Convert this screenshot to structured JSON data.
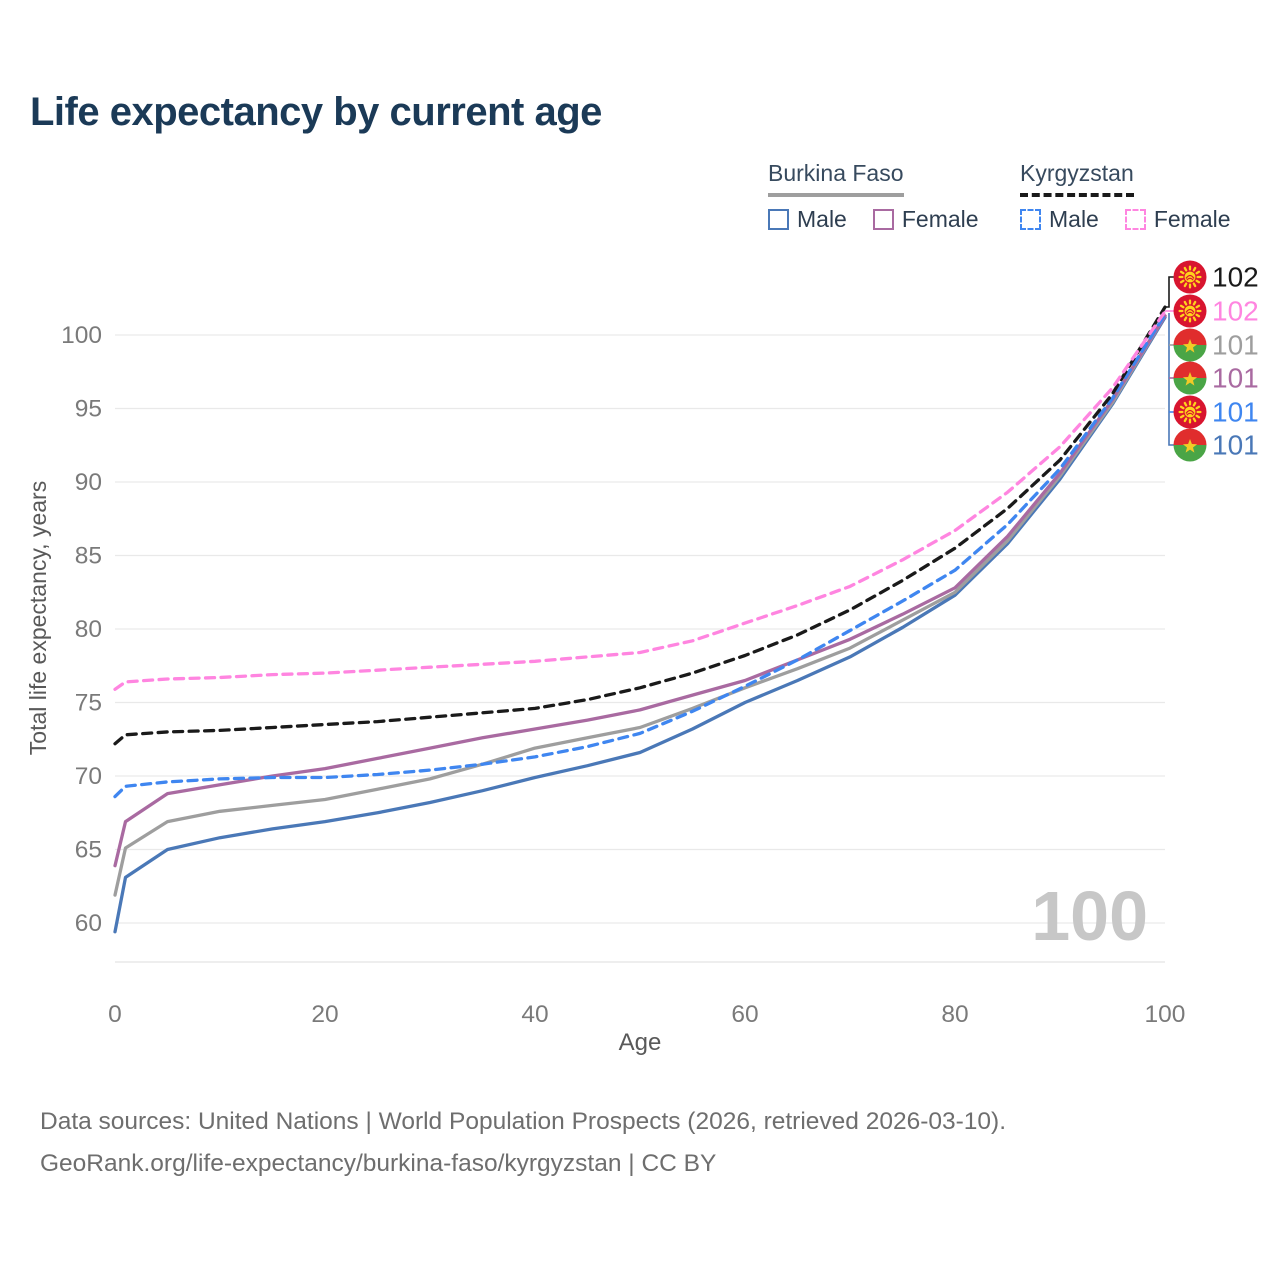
{
  "title": "Life expectancy by current age",
  "colors": {
    "title": "#1b3a57",
    "axis_text": "#7a7a7a",
    "axis_title": "#595959",
    "grid": "#e9e9e9",
    "watermark": "#c7c7c7",
    "footer": "#6e6e6e"
  },
  "legend": {
    "groups": [
      {
        "label": "Burkina Faso",
        "line_style": "solid",
        "line_color": "#9e9e9e",
        "items": [
          {
            "label": "Male",
            "color": "#4a78b7",
            "dashed": false
          },
          {
            "label": "Female",
            "color": "#a96aa1",
            "dashed": false
          }
        ]
      },
      {
        "label": "Kyrgyzstan",
        "line_style": "dashed",
        "line_color": "#1a1a1a",
        "items": [
          {
            "label": "Male",
            "color": "#3f86f0",
            "dashed": true
          },
          {
            "label": "Female",
            "color": "#ff85e0",
            "dashed": true
          }
        ]
      }
    ]
  },
  "chart_data": {
    "type": "line",
    "title": "Life expectancy by current age",
    "xlabel": "Age",
    "ylabel": "Total life expectancy, years",
    "xlim": [
      0,
      100
    ],
    "ylim": [
      58.5,
      104.5
    ],
    "x_ticks": [
      0,
      20,
      40,
      60,
      80,
      100
    ],
    "y_ticks": [
      60,
      65,
      70,
      75,
      80,
      85,
      90,
      95,
      100
    ],
    "grid": "horizontal-only",
    "legend_position": "top-right",
    "x": [
      0,
      1,
      5,
      10,
      15,
      20,
      25,
      30,
      35,
      40,
      45,
      50,
      55,
      60,
      65,
      70,
      75,
      80,
      85,
      90,
      95,
      100
    ],
    "series": [
      {
        "name": "Burkina Faso Male",
        "country": "Burkina Faso",
        "sex": "Male",
        "color": "#4a78b7",
        "dash": "solid",
        "flag": "burkina-faso",
        "end_label": "101",
        "values": [
          59.4,
          63.1,
          65.0,
          65.8,
          66.4,
          66.9,
          67.5,
          68.2,
          69.0,
          69.9,
          70.7,
          71.6,
          73.2,
          75.0,
          76.5,
          78.1,
          80.1,
          82.3,
          85.8,
          90.2,
          95.3,
          101.2
        ]
      },
      {
        "name": "Burkina Faso Both sexes",
        "country": "Burkina Faso",
        "sex": "Both",
        "color": "#9e9e9e",
        "dash": "solid",
        "flag": "burkina-faso",
        "end_label": "101",
        "values": [
          61.9,
          65.1,
          66.9,
          67.6,
          68.0,
          68.4,
          69.1,
          69.8,
          70.8,
          71.9,
          72.6,
          73.3,
          74.6,
          76.0,
          77.3,
          78.7,
          80.6,
          82.5,
          86.0,
          90.4,
          95.4,
          101.3
        ]
      },
      {
        "name": "Burkina Faso Female",
        "country": "Burkina Faso",
        "sex": "Female",
        "color": "#a96aa1",
        "dash": "solid",
        "flag": "burkina-faso",
        "end_label": "101",
        "values": [
          63.9,
          66.9,
          68.8,
          69.4,
          70.0,
          70.5,
          71.2,
          71.9,
          72.6,
          73.2,
          73.8,
          74.5,
          75.5,
          76.5,
          77.9,
          79.3,
          81.0,
          82.8,
          86.3,
          90.6,
          95.6,
          101.3
        ]
      },
      {
        "name": "Kyrgyzstan Male",
        "country": "Kyrgyzstan",
        "sex": "Male",
        "color": "#3f86f0",
        "dash": "dashed",
        "flag": "kyrgyzstan",
        "end_label": "101",
        "values": [
          68.6,
          69.3,
          69.6,
          69.8,
          69.9,
          69.9,
          70.1,
          70.4,
          70.8,
          71.3,
          72.0,
          72.9,
          74.4,
          76.1,
          77.9,
          79.9,
          81.9,
          84.0,
          87.1,
          90.9,
          95.7,
          101.4
        ]
      },
      {
        "name": "Kyrgyzstan Both sexes",
        "country": "Kyrgyzstan",
        "sex": "Both",
        "color": "#1a1a1a",
        "dash": "dashed",
        "flag": "kyrgyzstan",
        "end_label": "102",
        "values": [
          72.2,
          72.8,
          73.0,
          73.1,
          73.3,
          73.5,
          73.7,
          74.0,
          74.3,
          74.6,
          75.2,
          76.0,
          77.0,
          78.2,
          79.6,
          81.3,
          83.3,
          85.5,
          88.2,
          91.5,
          96.0,
          101.9
        ]
      },
      {
        "name": "Kyrgyzstan Female",
        "country": "Kyrgyzstan",
        "sex": "Female",
        "color": "#ff85e0",
        "dash": "dashed",
        "flag": "kyrgyzstan",
        "end_label": "102",
        "values": [
          75.9,
          76.4,
          76.6,
          76.7,
          76.9,
          77.0,
          77.2,
          77.4,
          77.6,
          77.8,
          78.1,
          78.4,
          79.2,
          80.4,
          81.6,
          82.9,
          84.7,
          86.7,
          89.3,
          92.4,
          96.4,
          101.6
        ]
      }
    ]
  },
  "end_labels_order": [
    "Kyrgyzstan Both sexes",
    "Kyrgyzstan Female",
    "Burkina Faso Both sexes",
    "Burkina Faso Female",
    "Kyrgyzstan Male",
    "Burkina Faso Male"
  ],
  "watermark": "100",
  "footer": {
    "line1": "Data sources: United Nations | World Population Prospects (2026, retrieved 2026-03-10).",
    "line2": "GeoRank.org/life-expectancy/burkina-faso/kyrgyzstan | CC BY"
  }
}
